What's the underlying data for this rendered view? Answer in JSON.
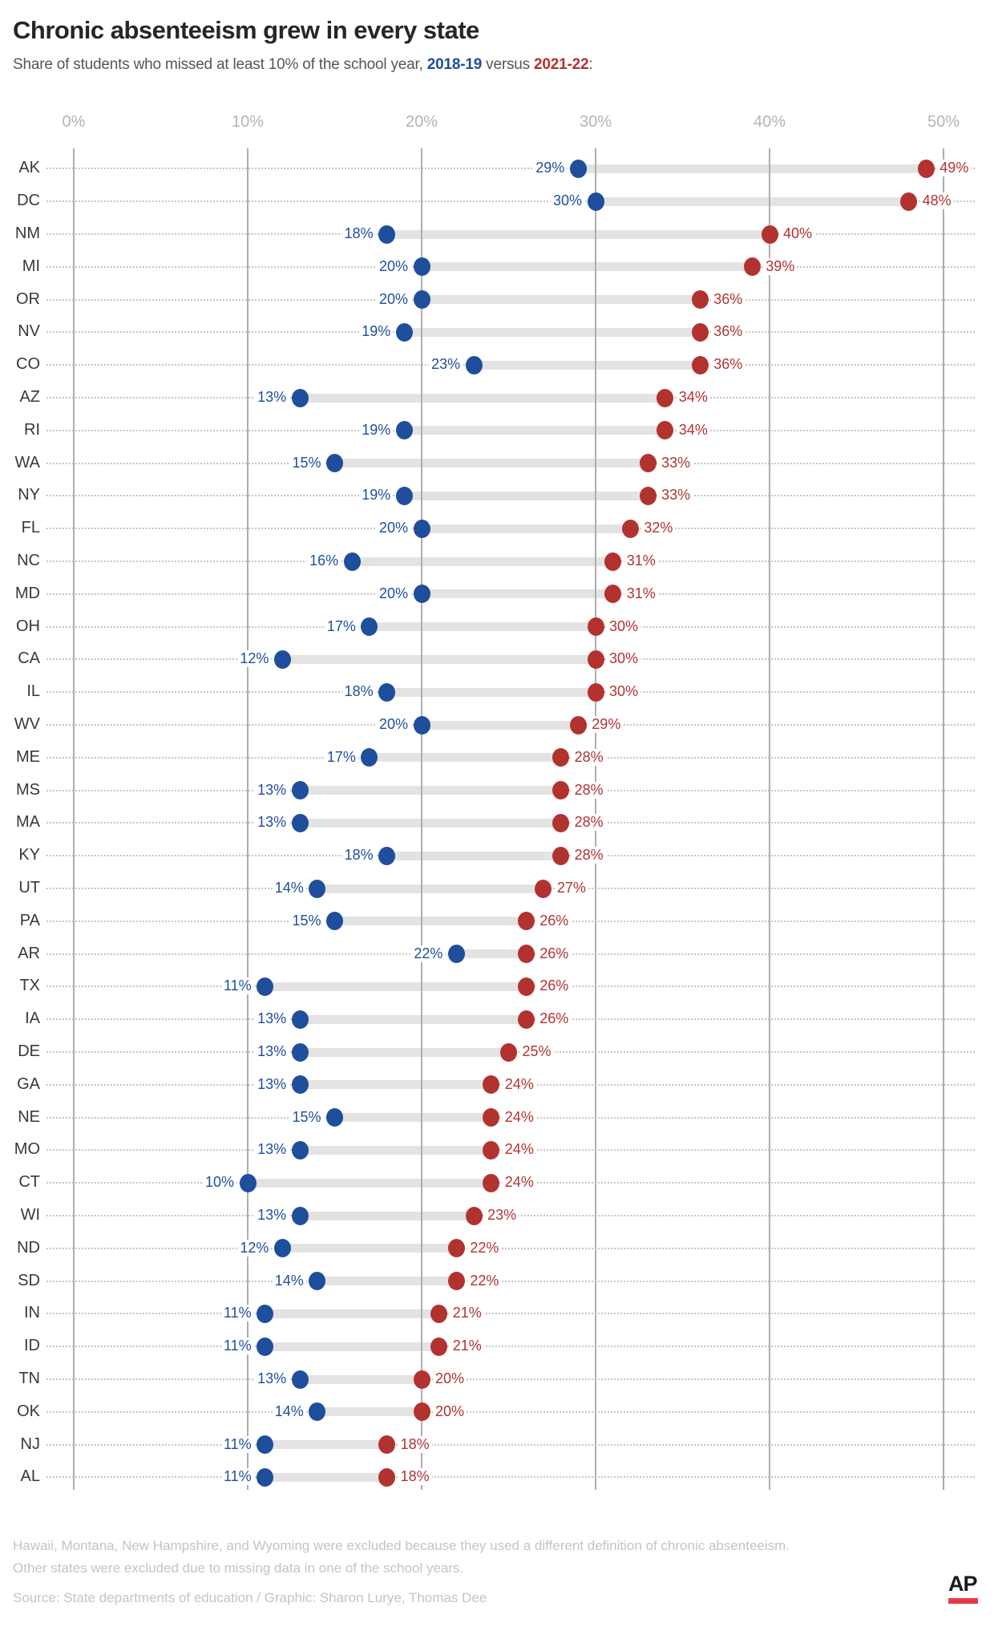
{
  "header": {
    "title": "Chronic absenteeism grew in every state",
    "subtitle_prefix": "Share of students who missed at least 10% of the school year, ",
    "year_blue": "2018-19",
    "subtitle_middle": " versus ",
    "year_red": "2021-22",
    "subtitle_suffix": ":"
  },
  "colors": {
    "blue_2018_19": "#1e4e9c",
    "red_2021_22": "#b23230",
    "connector_band": "#e3e3e3",
    "gridline": "#aeaeae",
    "leader_dots": "#c6c6c6",
    "axis_text": "#b4b4b4",
    "state_text": "#383838",
    "note_text": "#c4c4c4",
    "ap_underline_red": "#e73847"
  },
  "chart_data": {
    "type": "dumbbell",
    "title": "Chronic absenteeism grew in every state",
    "x_axis": {
      "ticks": [
        "0%",
        "10%",
        "20%",
        "30%",
        "40%",
        "50%"
      ],
      "tick_values": [
        0,
        10,
        20,
        30,
        40,
        50
      ],
      "min": 0,
      "max": 50,
      "grid": true
    },
    "series": [
      {
        "name": "2018-19",
        "color": "#1e4e9c"
      },
      {
        "name": "2021-22",
        "color": "#b23230"
      }
    ],
    "rows": [
      {
        "state": "AK",
        "y2019": 29,
        "y2022": 49
      },
      {
        "state": "DC",
        "y2019": 30,
        "y2022": 48
      },
      {
        "state": "NM",
        "y2019": 18,
        "y2022": 40
      },
      {
        "state": "MI",
        "y2019": 20,
        "y2022": 39
      },
      {
        "state": "OR",
        "y2019": 20,
        "y2022": 36
      },
      {
        "state": "NV",
        "y2019": 19,
        "y2022": 36
      },
      {
        "state": "CO",
        "y2019": 23,
        "y2022": 36
      },
      {
        "state": "AZ",
        "y2019": 13,
        "y2022": 34
      },
      {
        "state": "RI",
        "y2019": 19,
        "y2022": 34
      },
      {
        "state": "WA",
        "y2019": 15,
        "y2022": 33
      },
      {
        "state": "NY",
        "y2019": 19,
        "y2022": 33
      },
      {
        "state": "FL",
        "y2019": 20,
        "y2022": 32
      },
      {
        "state": "NC",
        "y2019": 16,
        "y2022": 31
      },
      {
        "state": "MD",
        "y2019": 20,
        "y2022": 31
      },
      {
        "state": "OH",
        "y2019": 17,
        "y2022": 30
      },
      {
        "state": "CA",
        "y2019": 12,
        "y2022": 30
      },
      {
        "state": "IL",
        "y2019": 18,
        "y2022": 30
      },
      {
        "state": "WV",
        "y2019": 20,
        "y2022": 29
      },
      {
        "state": "ME",
        "y2019": 17,
        "y2022": 28
      },
      {
        "state": "MS",
        "y2019": 13,
        "y2022": 28
      },
      {
        "state": "MA",
        "y2019": 13,
        "y2022": 28
      },
      {
        "state": "KY",
        "y2019": 18,
        "y2022": 28
      },
      {
        "state": "UT",
        "y2019": 14,
        "y2022": 27
      },
      {
        "state": "PA",
        "y2019": 15,
        "y2022": 26
      },
      {
        "state": "AR",
        "y2019": 22,
        "y2022": 26
      },
      {
        "state": "TX",
        "y2019": 11,
        "y2022": 26
      },
      {
        "state": "IA",
        "y2019": 13,
        "y2022": 26
      },
      {
        "state": "DE",
        "y2019": 13,
        "y2022": 25
      },
      {
        "state": "GA",
        "y2019": 13,
        "y2022": 24
      },
      {
        "state": "NE",
        "y2019": 15,
        "y2022": 24
      },
      {
        "state": "MO",
        "y2019": 13,
        "y2022": 24
      },
      {
        "state": "CT",
        "y2019": 10,
        "y2022": 24
      },
      {
        "state": "WI",
        "y2019": 13,
        "y2022": 23
      },
      {
        "state": "ND",
        "y2019": 12,
        "y2022": 22
      },
      {
        "state": "SD",
        "y2019": 14,
        "y2022": 22
      },
      {
        "state": "IN",
        "y2019": 11,
        "y2022": 21
      },
      {
        "state": "ID",
        "y2019": 11,
        "y2022": 21
      },
      {
        "state": "TN",
        "y2019": 13,
        "y2022": 20
      },
      {
        "state": "OK",
        "y2019": 14,
        "y2022": 20
      },
      {
        "state": "NJ",
        "y2019": 11,
        "y2022": 18
      },
      {
        "state": "AL",
        "y2019": 11,
        "y2022": 18
      }
    ]
  },
  "notes": {
    "line1": "Hawaii, Montana, New Hampshire, and Wyoming were excluded because they used a different definition of chronic absenteeism.",
    "line2": "Other states were excluded due to missing data in one of the school years."
  },
  "source": {
    "text": "Source: State departments of education / Graphic: Sharon Lurye, Thomas Dee"
  },
  "ap": {
    "label": "AP"
  }
}
